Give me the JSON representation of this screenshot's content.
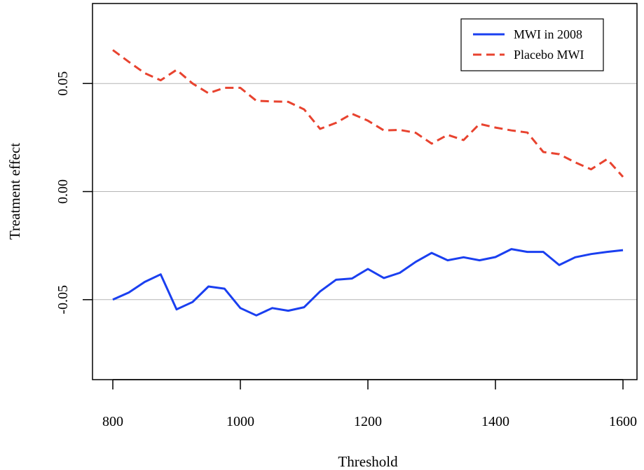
{
  "chart_data": {
    "type": "line",
    "xlabel": "Threshold",
    "ylabel": "Treatment effect",
    "xlim": [
      800,
      1600
    ],
    "ylim": [
      -0.087,
      0.087
    ],
    "x_ticks": [
      800,
      1000,
      1200,
      1400,
      1600
    ],
    "x_tick_labels": [
      "800",
      "1000",
      "1200",
      "1400",
      "1600"
    ],
    "y_ticks": [
      -0.05,
      0.0,
      0.05
    ],
    "y_tick_labels": [
      "-0.05",
      "0.00",
      "0.05"
    ],
    "horizontal_grid": true,
    "legend_position": "top-right",
    "x": [
      800,
      825,
      850,
      875,
      900,
      925,
      950,
      975,
      1000,
      1025,
      1050,
      1075,
      1100,
      1125,
      1150,
      1175,
      1200,
      1225,
      1250,
      1275,
      1300,
      1325,
      1350,
      1375,
      1400,
      1425,
      1450,
      1475,
      1500,
      1525,
      1550,
      1575,
      1600
    ],
    "series": [
      {
        "name": "MWI in 2008",
        "color": "#1a3ff0",
        "style": "solid",
        "values": [
          -0.05,
          -0.0467,
          -0.0418,
          -0.0383,
          -0.0545,
          -0.0511,
          -0.0439,
          -0.0449,
          -0.0539,
          -0.0573,
          -0.0539,
          -0.0551,
          -0.0535,
          -0.0462,
          -0.0408,
          -0.0402,
          -0.0358,
          -0.04,
          -0.0376,
          -0.0325,
          -0.0284,
          -0.0318,
          -0.0304,
          -0.0318,
          -0.0303,
          -0.0266,
          -0.0279,
          -0.0279,
          -0.034,
          -0.0304,
          -0.0289,
          -0.0279,
          -0.0271
        ]
      },
      {
        "name": "Placebo MWI",
        "color": "#e8432f",
        "style": "dashed",
        "values": [
          0.0655,
          0.06,
          0.0548,
          0.0515,
          0.0563,
          0.05,
          0.0455,
          0.048,
          0.048,
          0.042,
          0.0417,
          0.0415,
          0.038,
          0.029,
          0.0318,
          0.036,
          0.0328,
          0.0283,
          0.0285,
          0.0272,
          0.0222,
          0.0262,
          0.0238,
          0.0313,
          0.0296,
          0.0283,
          0.0273,
          0.0183,
          0.0173,
          0.0135,
          0.0103,
          0.015,
          0.0068
        ]
      }
    ]
  }
}
